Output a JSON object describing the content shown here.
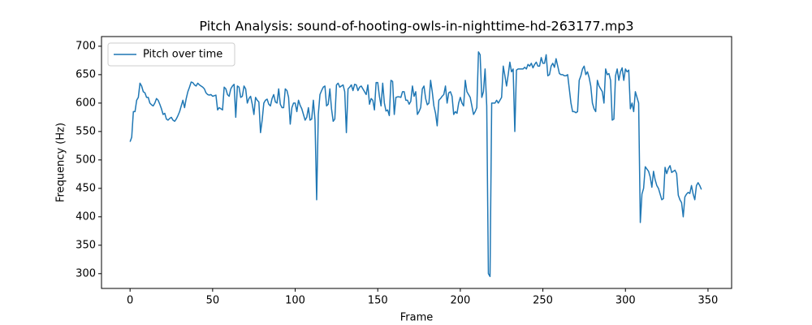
{
  "chart_data": {
    "type": "line",
    "title": "Pitch Analysis: sound-of-hooting-owls-in-nighttime-hd-263177.mp3",
    "xlabel": "Frame",
    "ylabel": "Frequency (Hz)",
    "x": [
      0,
      1,
      2,
      3,
      4,
      5,
      6,
      7,
      8,
      9,
      10,
      11,
      12,
      13,
      14,
      15,
      16,
      17,
      18,
      19,
      20,
      21,
      22,
      23,
      24,
      25,
      26,
      27,
      28,
      29,
      30,
      31,
      32,
      33,
      34,
      35,
      36,
      37,
      38,
      39,
      40,
      41,
      42,
      43,
      44,
      45,
      46,
      47,
      48,
      49,
      50,
      51,
      52,
      53,
      54,
      55,
      56,
      57,
      58,
      59,
      60,
      61,
      62,
      63,
      64,
      65,
      66,
      67,
      68,
      69,
      70,
      71,
      72,
      73,
      74,
      75,
      76,
      77,
      78,
      79,
      80,
      81,
      82,
      83,
      84,
      85,
      86,
      87,
      88,
      89,
      90,
      91,
      92,
      93,
      94,
      95,
      96,
      97,
      98,
      99,
      100,
      101,
      102,
      103,
      104,
      105,
      106,
      107,
      108,
      109,
      110,
      111,
      112,
      113,
      114,
      115,
      116,
      117,
      118,
      119,
      120,
      121,
      122,
      123,
      124,
      125,
      126,
      127,
      128,
      129,
      130,
      131,
      132,
      133,
      134,
      135,
      136,
      137,
      138,
      139,
      140,
      141,
      142,
      143,
      144,
      145,
      146,
      147,
      148,
      149,
      150,
      151,
      152,
      153,
      154,
      155,
      156,
      157,
      158,
      159,
      160,
      161,
      162,
      163,
      164,
      165,
      166,
      167,
      168,
      169,
      170,
      171,
      172,
      173,
      174,
      175,
      176,
      177,
      178,
      179,
      180,
      181,
      182,
      183,
      184,
      185,
      186,
      187,
      188,
      189,
      190,
      191,
      192,
      193,
      194,
      195,
      196,
      197,
      198,
      199,
      200,
      201,
      202,
      203,
      204,
      205,
      206,
      207,
      208,
      209,
      210,
      211,
      212,
      213,
      214,
      215,
      216,
      217,
      218,
      219,
      220,
      221,
      222,
      223,
      224,
      225,
      226,
      227,
      228,
      229,
      230,
      231,
      232,
      233,
      234,
      235,
      236,
      237,
      238,
      239,
      240,
      241,
      242,
      243,
      244,
      245,
      246,
      247,
      248,
      249,
      250,
      251,
      252,
      253,
      254,
      255,
      256,
      257,
      258,
      259,
      260,
      261,
      262,
      263,
      264,
      265,
      266,
      267,
      268,
      269,
      270,
      271,
      272,
      273,
      274,
      275,
      276,
      277,
      278,
      279,
      280,
      281,
      282,
      283,
      284,
      285,
      286,
      287,
      288,
      289,
      290,
      291,
      292,
      293,
      294,
      295,
      296,
      297,
      298,
      299,
      300,
      301,
      302,
      303,
      304,
      305,
      306,
      307,
      308,
      309,
      310,
      311,
      312,
      313,
      314,
      315,
      316,
      317,
      318,
      319,
      320,
      321,
      322,
      323,
      324,
      325,
      326,
      327,
      328,
      329,
      330,
      331,
      332,
      333,
      334,
      335,
      336,
      337,
      338,
      339,
      340,
      341,
      342,
      343,
      344,
      345,
      346
    ],
    "series": [
      {
        "name": "Pitch over time",
        "color": "#1f77b4",
        "values": [
          532,
          540,
          585,
          585,
          605,
          610,
          635,
          630,
          620,
          618,
          610,
          610,
          600,
          597,
          595,
          600,
          608,
          605,
          598,
          590,
          580,
          582,
          572,
          570,
          573,
          575,
          570,
          568,
          572,
          578,
          585,
          595,
          605,
          592,
          608,
          620,
          628,
          637,
          636,
          632,
          630,
          635,
          632,
          630,
          628,
          625,
          618,
          615,
          614,
          615,
          612,
          613,
          614,
          588,
          592,
          590,
          588,
          628,
          625,
          615,
          612,
          625,
          630,
          633,
          575,
          630,
          628,
          610,
          612,
          630,
          625,
          600,
          608,
          612,
          598,
          580,
          610,
          605,
          602,
          548,
          570,
          600,
          605,
          607,
          598,
          595,
          608,
          615,
          602,
          600,
          625,
          598,
          592,
          592,
          625,
          622,
          610,
          563,
          592,
          600,
          600,
          585,
          605,
          596,
          590,
          580,
          570,
          575,
          592,
          570,
          572,
          605,
          570,
          430,
          580,
          615,
          622,
          628,
          630,
          595,
          598,
          625,
          590,
          568,
          572,
          632,
          635,
          628,
          630,
          632,
          620,
          548,
          625,
          628,
          632,
          622,
          633,
          632,
          622,
          628,
          630,
          625,
          620,
          615,
          632,
          598,
          608,
          605,
          588,
          636,
          636,
          612,
          595,
          635,
          600,
          586,
          588,
          578,
          640,
          638,
          580,
          610,
          611,
          611,
          610,
          620,
          620,
          605,
          605,
          598,
          603,
          630,
          612,
          620,
          580,
          585,
          592,
          625,
          630,
          608,
          597,
          600,
          640,
          620,
          595,
          582,
          560,
          605,
          608,
          612,
          615,
          630,
          600,
          618,
          620,
          612,
          580,
          585,
          582,
          600,
          610,
          600,
          595,
          640,
          620,
          615,
          610,
          595,
          580,
          585,
          592,
          690,
          685,
          610,
          620,
          660,
          595,
          300,
          295,
          600,
          600,
          600,
          605,
          600,
          605,
          610,
          665,
          648,
          630,
          650,
          672,
          655,
          660,
          550,
          658,
          660,
          660,
          660,
          660,
          663,
          660,
          668,
          665,
          670,
          662,
          668,
          672,
          665,
          665,
          680,
          670,
          670,
          685,
          648,
          650,
          665,
          670,
          663,
          678,
          665,
          652,
          650,
          650,
          648,
          648,
          650,
          625,
          600,
          585,
          585,
          583,
          585,
          640,
          648,
          660,
          665,
          650,
          655,
          645,
          630,
          600,
          590,
          585,
          640,
          630,
          625,
          620,
          600,
          660,
          650,
          652,
          640,
          570,
          572,
          648,
          660,
          640,
          655,
          662,
          640,
          660,
          655,
          658,
          590,
          600,
          585,
          620,
          610,
          600,
          390,
          440,
          450,
          488,
          484,
          480,
          470,
          452,
          480,
          465,
          455,
          450,
          440,
          430,
          432,
          487,
          476,
          485,
          490,
          478,
          480,
          482,
          476,
          438,
          430,
          425,
          400,
          435,
          440,
          443,
          441,
          455,
          440,
          430,
          455,
          460,
          455,
          448
        ]
      }
    ],
    "xlim": [
      -17.3,
      364.3
    ],
    "xticks": [
      0,
      50,
      100,
      150,
      200,
      250,
      300,
      350
    ],
    "ylim": [
      274,
      717
    ],
    "yticks": [
      300,
      350,
      400,
      450,
      500,
      550,
      600,
      650,
      700
    ],
    "legend": "upper-left"
  }
}
